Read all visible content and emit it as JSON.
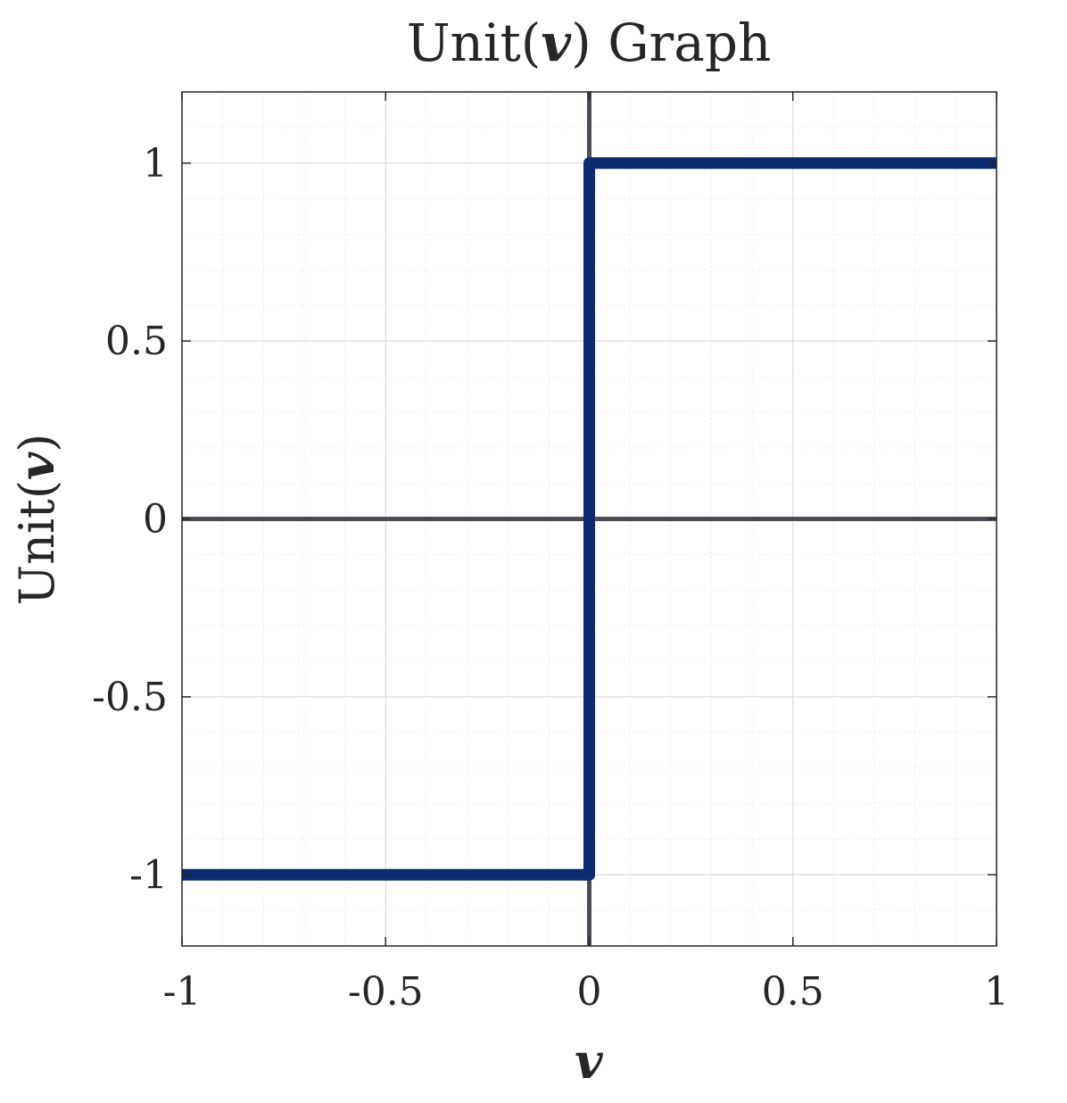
{
  "chart_data": {
    "type": "line",
    "title": {
      "prefix": "Unit(",
      "variable": "v",
      "suffix": ") Graph"
    },
    "xlabel": "v",
    "ylabel": {
      "prefix": "Unit(",
      "variable": "v",
      "suffix": ")"
    },
    "xlim": [
      -1,
      1
    ],
    "ylim": [
      -1.2,
      1.2
    ],
    "xticks": [
      -1,
      -0.5,
      0,
      0.5,
      1
    ],
    "xtick_labels": [
      "-1",
      "-0.5",
      "0",
      "0.5",
      "1"
    ],
    "yticks": [
      -1,
      -0.5,
      0,
      0.5,
      1
    ],
    "ytick_labels": [
      "-1",
      "-0.5",
      "0",
      "0.5",
      "1"
    ],
    "grid": true,
    "minor_grid": true,
    "axis_lines_through_origin": true,
    "series": [
      {
        "color": "#0b2a6f",
        "x": [
          -1,
          0,
          0,
          1
        ],
        "y": [
          -1,
          -1,
          1,
          1
        ]
      }
    ],
    "colors": {
      "line": "#0b2a6f",
      "origin_axes": "#4a4d55",
      "grid_major": "#dcdcdc",
      "grid_minor": "#ececec",
      "frame": "#262626"
    }
  }
}
